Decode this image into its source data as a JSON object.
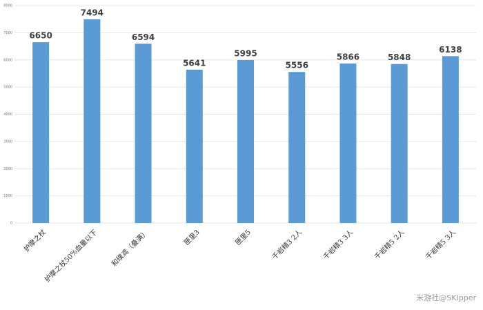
{
  "chart_data": {
    "type": "bar",
    "categories": [
      "护摩之杖",
      "护摩之杖50%血量以下",
      "和璞鸢（叠满）",
      "匣里3",
      "匣里5",
      "千岩精3 2人",
      "千岩精3 3人",
      "千岩精5 2人",
      "千岩精5 3人"
    ],
    "values": [
      6650,
      7494,
      6594,
      5641,
      5995,
      5556,
      5866,
      5848,
      6138
    ],
    "color": "#5b9bd5",
    "ylim": [
      0,
      8000
    ],
    "yticks": [
      0,
      1000,
      2000,
      3000,
      4000,
      5000,
      6000,
      7000,
      8000
    ],
    "grid": true
  },
  "watermark": "米游社@SKIpper"
}
